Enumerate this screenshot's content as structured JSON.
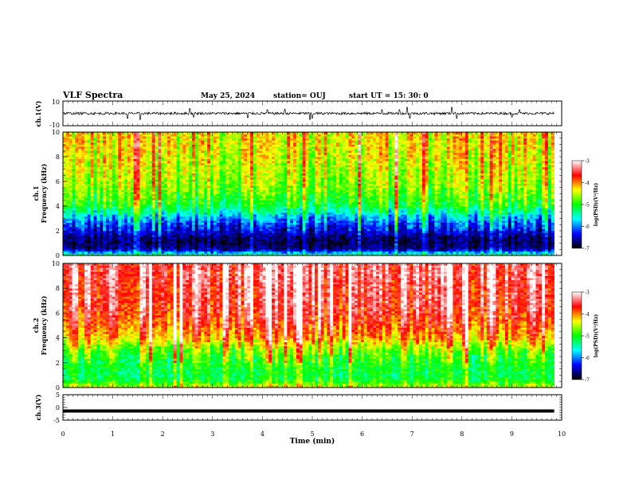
{
  "header": {
    "title": "VLF Spectra",
    "date": "May 25, 2024",
    "station": "station= OUJ",
    "start": "start  UT  =   15: 30: 0"
  },
  "colorbar": {
    "label": "log(PSD)(V²/Hz)",
    "ticks": [
      "-3",
      "-4",
      "-5",
      "-6",
      "-7"
    ],
    "colors": [
      "#ffffff",
      "#ff0000",
      "#ffff00",
      "#00ff00",
      "#00ffff",
      "#0000ff",
      "#000000"
    ]
  },
  "chart_data": [
    {
      "type": "line",
      "panel": "ch1-waveform",
      "ylabel": "ch.1(V)",
      "ylim": [
        -10,
        10
      ],
      "y_ticks": [
        "10",
        "-10"
      ],
      "x_min": [
        0,
        9.85
      ],
      "baseline_v": 0,
      "noise_amplitude_v": 1,
      "spikes": [
        {
          "t": 1.3,
          "v": -4
        },
        {
          "t": 1.55,
          "v": -5
        },
        {
          "t": 2.55,
          "v": 4
        },
        {
          "t": 2.62,
          "v": -3
        },
        {
          "t": 3.7,
          "v": -3.5
        },
        {
          "t": 4.1,
          "v": 3
        },
        {
          "t": 4.45,
          "v": 3.5
        },
        {
          "t": 4.95,
          "v": -5
        },
        {
          "t": 5.0,
          "v": -4
        },
        {
          "t": 6.4,
          "v": 3
        },
        {
          "t": 6.75,
          "v": 3
        },
        {
          "t": 6.9,
          "v": 5
        },
        {
          "t": 6.95,
          "v": -4
        },
        {
          "t": 7.8,
          "v": 5
        },
        {
          "t": 7.9,
          "v": -4
        },
        {
          "t": 9.0,
          "v": -3
        },
        {
          "t": 9.15,
          "v": 3
        }
      ]
    },
    {
      "type": "heatmap",
      "panel": "ch1-spectrogram",
      "ylabel": "ch.1\nFrequency  (kHz)",
      "ylim": [
        0,
        10
      ],
      "y_ticks": [
        "0",
        "2",
        "4",
        "6",
        "8",
        "10"
      ],
      "x_min": [
        0,
        9.85
      ],
      "clim": [
        -7,
        -3
      ],
      "profile_freq_khz": [
        0,
        0.5,
        1,
        1.5,
        2,
        2.5,
        3,
        3.5,
        4,
        5,
        6,
        7,
        8,
        9,
        10
      ],
      "profile_log_psd": [
        -5.2,
        -6.6,
        -6.8,
        -6.7,
        -6.4,
        -6.2,
        -5.9,
        -5.5,
        -5.1,
        -4.8,
        -4.6,
        -4.5,
        -4.4,
        -4.3,
        -4.3
      ]
    },
    {
      "type": "heatmap",
      "panel": "ch2-spectrogram",
      "ylabel": "ch.2\nFrequency  (kHz)",
      "ylim": [
        0,
        10
      ],
      "y_ticks": [
        "0",
        "2",
        "4",
        "6",
        "8",
        "10"
      ],
      "x_min": [
        0,
        9.85
      ],
      "clim": [
        -7,
        -3
      ],
      "profile_freq_khz": [
        0,
        0.5,
        1,
        1.5,
        2,
        2.5,
        3,
        3.5,
        4,
        5,
        6,
        7,
        8,
        9,
        10
      ],
      "profile_log_psd": [
        -4.4,
        -5.0,
        -5.2,
        -5.1,
        -5.0,
        -4.9,
        -4.7,
        -4.4,
        -4.1,
        -3.8,
        -3.6,
        -3.5,
        -3.5,
        -3.4,
        -3.4
      ]
    },
    {
      "type": "line",
      "panel": "ch3-waveform",
      "ylabel": "ch.3(V)",
      "xlabel": "Time  (min)",
      "ylim": [
        -5,
        5
      ],
      "y_ticks": [
        "5",
        "0",
        "-5"
      ],
      "x_ticks": [
        "0",
        "1",
        "2",
        "3",
        "4",
        "5",
        "6",
        "7",
        "8",
        "9",
        "10"
      ],
      "xlim": [
        0,
        10
      ],
      "x_min": [
        0,
        9.85
      ],
      "level_v": -1.4
    }
  ]
}
